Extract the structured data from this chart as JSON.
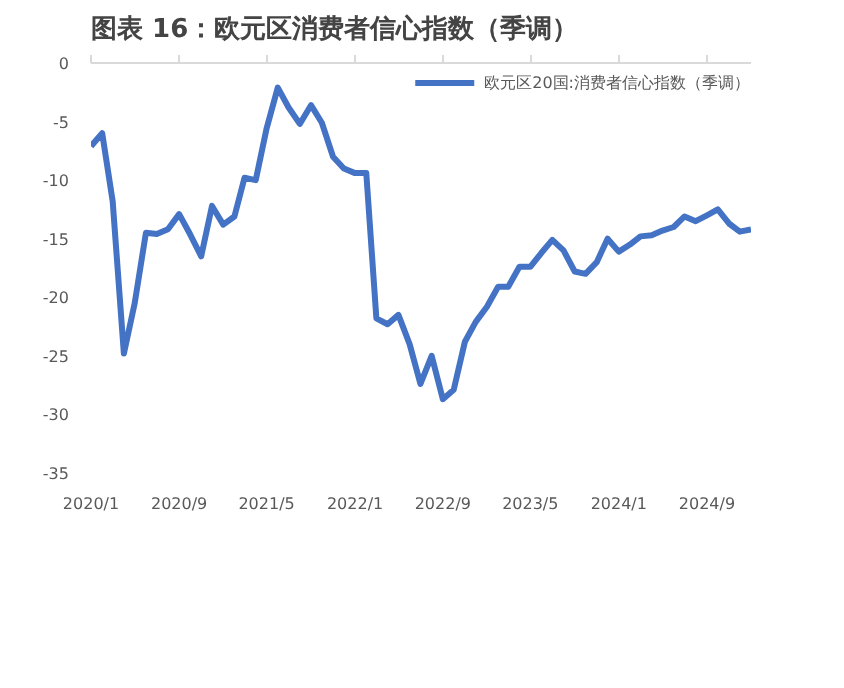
{
  "chart_data": {
    "type": "line",
    "title": "图表 16：欧元区消费者信心指数（季调）",
    "x": [
      "2020-01",
      "2020-02",
      "2020-03",
      "2020-04",
      "2020-05",
      "2020-06",
      "2020-07",
      "2020-08",
      "2020-09",
      "2020-10",
      "2020-11",
      "2020-12",
      "2021-01",
      "2021-02",
      "2021-03",
      "2021-04",
      "2021-05",
      "2021-06",
      "2021-07",
      "2021-08",
      "2021-09",
      "2021-10",
      "2021-11",
      "2021-12",
      "2022-01",
      "2022-02",
      "2022-03",
      "2022-04",
      "2022-05",
      "2022-06",
      "2022-07",
      "2022-08",
      "2022-09",
      "2022-10",
      "2022-11",
      "2022-12",
      "2023-01",
      "2023-02",
      "2023-03",
      "2023-04",
      "2023-05",
      "2023-06",
      "2023-07",
      "2023-08",
      "2023-09",
      "2023-10",
      "2023-11",
      "2023-12",
      "2024-01",
      "2024-02",
      "2024-03",
      "2024-04",
      "2024-05",
      "2024-06",
      "2024-07",
      "2024-08",
      "2024-09",
      "2024-10",
      "2024-11",
      "2024-12",
      "2025-01"
    ],
    "series": [
      {
        "name": "欧元区20国:消费者信心指数（季调）",
        "color": "#4472c4",
        "values": [
          -7.1,
          -6.0,
          -11.8,
          -24.8,
          -20.5,
          -14.5,
          -14.6,
          -14.2,
          -12.9,
          -14.6,
          -16.5,
          -12.2,
          -13.8,
          -13.1,
          -9.8,
          -10.0,
          -5.6,
          -2.1,
          -3.8,
          -5.2,
          -3.6,
          -5.1,
          -8.0,
          -9.0,
          -9.4,
          -9.4,
          -21.8,
          -22.3,
          -21.5,
          -24.0,
          -27.4,
          -25.0,
          -28.7,
          -27.9,
          -23.8,
          -22.1,
          -20.8,
          -19.1,
          -19.1,
          -17.4,
          -17.4,
          -16.2,
          -15.1,
          -16.0,
          -17.8,
          -18.0,
          -17.0,
          -15.0,
          -16.1,
          -15.5,
          -14.8,
          -14.7,
          -14.3,
          -14.0,
          -13.1,
          -13.5,
          -13.0,
          -12.5,
          -13.7,
          -14.4,
          -14.2
        ]
      }
    ],
    "ylim": [
      -35,
      0
    ],
    "yticks": [
      -35,
      -30,
      -25,
      -20,
      -15,
      -10,
      -5,
      0
    ],
    "xlim": [
      "2020-01",
      "2025-01"
    ],
    "xticks": [
      {
        "value": "2020-01",
        "label": "2020/1"
      },
      {
        "value": "2020-09",
        "label": "2020/9"
      },
      {
        "value": "2021-05",
        "label": "2021/5"
      },
      {
        "value": "2022-01",
        "label": "2022/1"
      },
      {
        "value": "2022-09",
        "label": "2022/9"
      },
      {
        "value": "2023-05",
        "label": "2023/5"
      },
      {
        "value": "2024-01",
        "label": "2024/1"
      },
      {
        "value": "2024-09",
        "label": "2024/9"
      }
    ],
    "grid": false,
    "legend": "top right",
    "marker": "none",
    "line_style": "solid"
  }
}
